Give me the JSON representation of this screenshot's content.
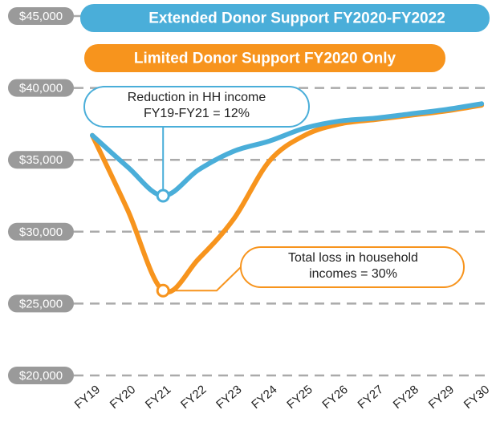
{
  "chart_data": {
    "type": "line",
    "categories": [
      "FY19",
      "FY20",
      "FY21",
      "FY22",
      "FY23",
      "FY24",
      "FY25",
      "FY26",
      "FY27",
      "FY28",
      "FY29",
      "FY30"
    ],
    "series": [
      {
        "name": "Extended Donor Support FY2020-FY2022",
        "color": "#4aaed9",
        "values": [
          36700,
          34500,
          32500,
          34300,
          35600,
          36300,
          37200,
          37700,
          37900,
          38200,
          38500,
          38900
        ]
      },
      {
        "name": "Limited Donor Support FY2020 Only",
        "color": "#f7941d",
        "values": [
          36700,
          31500,
          25900,
          28100,
          30900,
          34900,
          36700,
          37500,
          37800,
          38100,
          38400,
          38800
        ]
      }
    ],
    "ylim": [
      20000,
      45000
    ],
    "yticks": [
      {
        "value": 20000,
        "label": "$20,000"
      },
      {
        "value": 25000,
        "label": "$25,000"
      },
      {
        "value": 30000,
        "label": "$30,000"
      },
      {
        "value": 35000,
        "label": "$35,000"
      },
      {
        "value": 40000,
        "label": "$40,000"
      },
      {
        "value": 45000,
        "label": "$45,000"
      }
    ],
    "grid": true,
    "annotations": [
      {
        "lines": [
          "Reduction in HH income",
          "FY19-FY21 = 12%"
        ]
      },
      {
        "lines": [
          "Total loss in household",
          "incomes = 30%"
        ]
      }
    ]
  }
}
